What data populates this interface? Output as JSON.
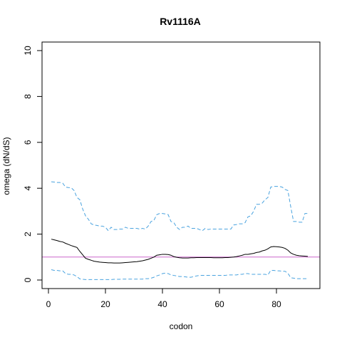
{
  "chart_data": {
    "type": "line",
    "title": "Rv1116A",
    "xlabel": "codon",
    "ylabel": "omega (dN/dS)",
    "xlim": [
      0,
      94
    ],
    "ylim": [
      0,
      10
    ],
    "x_ticks": [
      0,
      20,
      40,
      60,
      80
    ],
    "y_ticks": [
      0,
      2,
      4,
      6,
      8,
      10
    ],
    "x_tick_labels": [
      "0",
      "20",
      "40",
      "60",
      "80"
    ],
    "y_tick_labels": [
      "0",
      "2",
      "4",
      "6",
      "8",
      "10"
    ],
    "grid": false,
    "reference_line": {
      "y": 1,
      "color": "#cc66cc"
    },
    "series": [
      {
        "style": "solid",
        "color": "#000000",
        "points": [
          [
            1,
            1.78
          ],
          [
            2,
            1.75
          ],
          [
            3,
            1.72
          ],
          [
            4,
            1.68
          ],
          [
            5,
            1.66
          ],
          [
            6,
            1.6
          ],
          [
            7,
            1.55
          ],
          [
            8,
            1.5
          ],
          [
            9,
            1.46
          ],
          [
            10,
            1.42
          ],
          [
            11,
            1.25
          ],
          [
            12,
            1.1
          ],
          [
            13,
            0.95
          ],
          [
            14,
            0.9
          ],
          [
            15,
            0.86
          ],
          [
            16,
            0.82
          ],
          [
            17,
            0.8
          ],
          [
            18,
            0.78
          ],
          [
            19,
            0.77
          ],
          [
            20,
            0.76
          ],
          [
            21,
            0.75
          ],
          [
            22,
            0.75
          ],
          [
            23,
            0.74
          ],
          [
            24,
            0.74
          ],
          [
            25,
            0.74
          ],
          [
            26,
            0.75
          ],
          [
            27,
            0.76
          ],
          [
            28,
            0.77
          ],
          [
            29,
            0.78
          ],
          [
            30,
            0.79
          ],
          [
            31,
            0.8
          ],
          [
            32,
            0.82
          ],
          [
            33,
            0.84
          ],
          [
            34,
            0.87
          ],
          [
            35,
            0.9
          ],
          [
            36,
            0.95
          ],
          [
            37,
            1.0
          ],
          [
            38,
            1.08
          ],
          [
            39,
            1.1
          ],
          [
            40,
            1.12
          ],
          [
            41,
            1.12
          ],
          [
            42,
            1.11
          ],
          [
            43,
            1.08
          ],
          [
            44,
            1.02
          ],
          [
            45,
            0.99
          ],
          [
            46,
            0.97
          ],
          [
            47,
            0.96
          ],
          [
            48,
            0.96
          ],
          [
            49,
            0.96
          ],
          [
            50,
            0.97
          ],
          [
            51,
            0.97
          ],
          [
            52,
            0.98
          ],
          [
            53,
            0.98
          ],
          [
            54,
            0.98
          ],
          [
            55,
            0.98
          ],
          [
            56,
            0.98
          ],
          [
            57,
            0.98
          ],
          [
            58,
            0.97
          ],
          [
            59,
            0.97
          ],
          [
            60,
            0.97
          ],
          [
            61,
            0.97
          ],
          [
            62,
            0.98
          ],
          [
            63,
            0.98
          ],
          [
            64,
            0.99
          ],
          [
            65,
            1.0
          ],
          [
            66,
            1.02
          ],
          [
            67,
            1.05
          ],
          [
            68,
            1.08
          ],
          [
            69,
            1.12
          ],
          [
            70,
            1.12
          ],
          [
            71,
            1.14
          ],
          [
            72,
            1.16
          ],
          [
            73,
            1.2
          ],
          [
            74,
            1.22
          ],
          [
            75,
            1.27
          ],
          [
            76,
            1.3
          ],
          [
            77,
            1.36
          ],
          [
            78,
            1.44
          ],
          [
            79,
            1.46
          ],
          [
            80,
            1.45
          ],
          [
            81,
            1.44
          ],
          [
            82,
            1.42
          ],
          [
            83,
            1.38
          ],
          [
            84,
            1.3
          ],
          [
            85,
            1.18
          ],
          [
            86,
            1.12
          ],
          [
            87,
            1.08
          ],
          [
            88,
            1.06
          ],
          [
            89,
            1.05
          ],
          [
            90,
            1.04
          ],
          [
            91,
            1.03
          ]
        ]
      },
      {
        "style": "dashed",
        "color": "#4aa3df",
        "points": [
          [
            1,
            4.28
          ],
          [
            2,
            4.27
          ],
          [
            3,
            4.25
          ],
          [
            4,
            4.25
          ],
          [
            5,
            4.22
          ],
          [
            6,
            4.05
          ],
          [
            7,
            4.03
          ],
          [
            8,
            4.02
          ],
          [
            9,
            3.9
          ],
          [
            10,
            3.6
          ],
          [
            11,
            3.5
          ],
          [
            12,
            3.1
          ],
          [
            13,
            2.8
          ],
          [
            14,
            2.65
          ],
          [
            15,
            2.45
          ],
          [
            16,
            2.4
          ],
          [
            17,
            2.38
          ],
          [
            18,
            2.35
          ],
          [
            19,
            2.35
          ],
          [
            20,
            2.3
          ],
          [
            21,
            2.15
          ],
          [
            22,
            2.3
          ],
          [
            23,
            2.2
          ],
          [
            24,
            2.2
          ],
          [
            25,
            2.22
          ],
          [
            26,
            2.22
          ],
          [
            27,
            2.3
          ],
          [
            28,
            2.25
          ],
          [
            29,
            2.25
          ],
          [
            30,
            2.25
          ],
          [
            31,
            2.25
          ],
          [
            32,
            2.22
          ],
          [
            33,
            2.25
          ],
          [
            34,
            2.22
          ],
          [
            35,
            2.35
          ],
          [
            36,
            2.55
          ],
          [
            37,
            2.6
          ],
          [
            38,
            2.85
          ],
          [
            39,
            2.9
          ],
          [
            40,
            2.9
          ],
          [
            41,
            2.88
          ],
          [
            42,
            2.85
          ],
          [
            43,
            2.55
          ],
          [
            44,
            2.5
          ],
          [
            45,
            2.3
          ],
          [
            46,
            2.2
          ],
          [
            47,
            2.3
          ],
          [
            48,
            2.3
          ],
          [
            49,
            2.35
          ],
          [
            50,
            2.25
          ],
          [
            51,
            2.25
          ],
          [
            52,
            2.25
          ],
          [
            53,
            2.2
          ],
          [
            54,
            2.15
          ],
          [
            55,
            2.25
          ],
          [
            56,
            2.2
          ],
          [
            57,
            2.22
          ],
          [
            58,
            2.22
          ],
          [
            59,
            2.22
          ],
          [
            60,
            2.22
          ],
          [
            61,
            2.22
          ],
          [
            62,
            2.22
          ],
          [
            63,
            2.22
          ],
          [
            64,
            2.22
          ],
          [
            65,
            2.4
          ],
          [
            66,
            2.42
          ],
          [
            67,
            2.45
          ],
          [
            68,
            2.45
          ],
          [
            69,
            2.5
          ],
          [
            70,
            2.75
          ],
          [
            71,
            2.8
          ],
          [
            72,
            3.0
          ],
          [
            73,
            3.3
          ],
          [
            74,
            3.3
          ],
          [
            75,
            3.35
          ],
          [
            76,
            3.5
          ],
          [
            77,
            3.6
          ],
          [
            78,
            4.05
          ],
          [
            79,
            4.08
          ],
          [
            80,
            4.08
          ],
          [
            81,
            4.08
          ],
          [
            82,
            4.05
          ],
          [
            83,
            3.95
          ],
          [
            84,
            3.9
          ],
          [
            85,
            3.2
          ],
          [
            86,
            2.55
          ],
          [
            87,
            2.55
          ],
          [
            88,
            2.52
          ],
          [
            89,
            2.52
          ],
          [
            90,
            2.9
          ],
          [
            91,
            2.9
          ]
        ]
      },
      {
        "style": "dashed",
        "color": "#4aa3df",
        "points": [
          [
            1,
            0.45
          ],
          [
            2,
            0.42
          ],
          [
            3,
            0.42
          ],
          [
            4,
            0.4
          ],
          [
            5,
            0.4
          ],
          [
            6,
            0.28
          ],
          [
            7,
            0.25
          ],
          [
            8,
            0.25
          ],
          [
            9,
            0.22
          ],
          [
            10,
            0.15
          ],
          [
            11,
            0.05
          ],
          [
            12,
            0.03
          ],
          [
            13,
            0.02
          ],
          [
            14,
            0.02
          ],
          [
            15,
            0.02
          ],
          [
            16,
            0.02
          ],
          [
            17,
            0.02
          ],
          [
            18,
            0.02
          ],
          [
            19,
            0.02
          ],
          [
            20,
            0.02
          ],
          [
            21,
            0.02
          ],
          [
            22,
            0.02
          ],
          [
            23,
            0.03
          ],
          [
            24,
            0.03
          ],
          [
            25,
            0.03
          ],
          [
            26,
            0.04
          ],
          [
            27,
            0.04
          ],
          [
            28,
            0.04
          ],
          [
            29,
            0.04
          ],
          [
            30,
            0.04
          ],
          [
            31,
            0.04
          ],
          [
            32,
            0.04
          ],
          [
            33,
            0.04
          ],
          [
            34,
            0.06
          ],
          [
            35,
            0.06
          ],
          [
            36,
            0.08
          ],
          [
            37,
            0.12
          ],
          [
            38,
            0.18
          ],
          [
            39,
            0.22
          ],
          [
            40,
            0.28
          ],
          [
            41,
            0.3
          ],
          [
            42,
            0.28
          ],
          [
            43,
            0.22
          ],
          [
            44,
            0.2
          ],
          [
            45,
            0.18
          ],
          [
            46,
            0.15
          ],
          [
            47,
            0.15
          ],
          [
            48,
            0.14
          ],
          [
            49,
            0.12
          ],
          [
            50,
            0.12
          ],
          [
            51,
            0.15
          ],
          [
            52,
            0.18
          ],
          [
            53,
            0.2
          ],
          [
            54,
            0.2
          ],
          [
            55,
            0.2
          ],
          [
            56,
            0.2
          ],
          [
            57,
            0.2
          ],
          [
            58,
            0.2
          ],
          [
            59,
            0.2
          ],
          [
            60,
            0.2
          ],
          [
            61,
            0.2
          ],
          [
            62,
            0.2
          ],
          [
            63,
            0.22
          ],
          [
            64,
            0.22
          ],
          [
            65,
            0.22
          ],
          [
            66,
            0.22
          ],
          [
            67,
            0.25
          ],
          [
            68,
            0.25
          ],
          [
            69,
            0.28
          ],
          [
            70,
            0.28
          ],
          [
            71,
            0.25
          ],
          [
            72,
            0.25
          ],
          [
            73,
            0.25
          ],
          [
            74,
            0.25
          ],
          [
            75,
            0.25
          ],
          [
            76,
            0.25
          ],
          [
            77,
            0.22
          ],
          [
            78,
            0.42
          ],
          [
            79,
            0.42
          ],
          [
            80,
            0.4
          ],
          [
            81,
            0.4
          ],
          [
            82,
            0.38
          ],
          [
            83,
            0.38
          ],
          [
            84,
            0.3
          ],
          [
            85,
            0.1
          ],
          [
            86,
            0.08
          ],
          [
            87,
            0.06
          ],
          [
            88,
            0.06
          ],
          [
            89,
            0.06
          ],
          [
            90,
            0.06
          ],
          [
            91,
            0.06
          ]
        ]
      }
    ]
  }
}
